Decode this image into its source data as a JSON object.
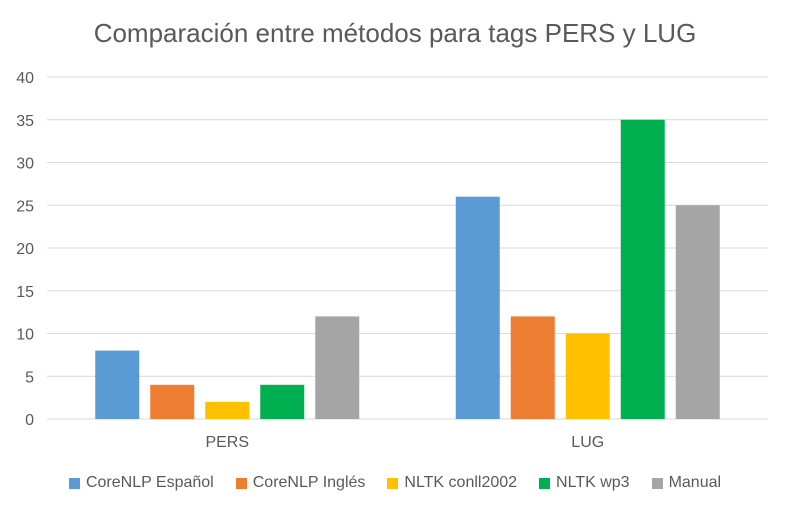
{
  "chart_data": {
    "type": "bar",
    "title": "Comparación entre métodos para tags PERS y LUG",
    "categories": [
      "PERS",
      "LUG"
    ],
    "series": [
      {
        "name": "CoreNLP Español",
        "color": "#5B9BD5",
        "values": [
          8,
          26
        ]
      },
      {
        "name": "CoreNLP Inglés",
        "color": "#ED7D31",
        "values": [
          4,
          12
        ]
      },
      {
        "name": "NLTK conll2002",
        "color": "#FFC000",
        "values": [
          2,
          10
        ]
      },
      {
        "name": "NLTK wp3",
        "color": "#00B050",
        "values": [
          4,
          35
        ]
      },
      {
        "name": "Manual",
        "color": "#A5A5A5",
        "values": [
          12,
          25
        ]
      }
    ],
    "ylim": [
      0,
      40
    ],
    "yticks": [
      0,
      5,
      10,
      15,
      20,
      25,
      30,
      35,
      40
    ],
    "grid": true,
    "legend_position": "bottom",
    "gridline_color": "#D9D9D9"
  }
}
